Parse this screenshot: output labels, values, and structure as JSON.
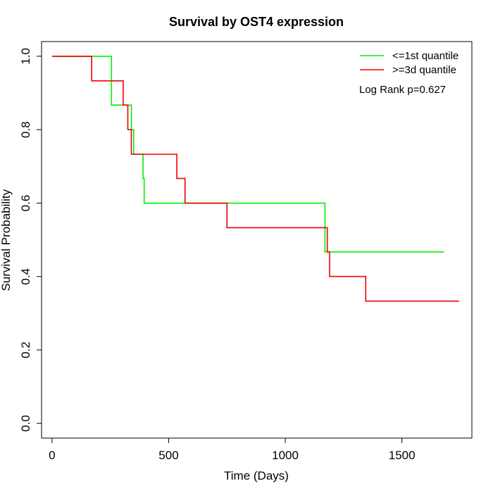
{
  "chart_data": {
    "type": "line",
    "title": "Survival by OST4 expression",
    "xlabel": "Time (Days)",
    "ylabel": "Survival Probability",
    "xlim": [
      -45,
      1800
    ],
    "ylim": [
      -0.04,
      1.04
    ],
    "xticks": [
      0,
      500,
      1000,
      1500
    ],
    "yticks": [
      0.0,
      0.2,
      0.4,
      0.6,
      0.8,
      1.0
    ],
    "ytick_labels": [
      "0.0",
      "0.2",
      "0.4",
      "0.6",
      "0.8",
      "1.0"
    ],
    "legend_position": "top-right",
    "annotation": "Log Rank p=0.627",
    "series": [
      {
        "name": "<=1st quantile",
        "color": "#00ee00",
        "x": [
          0,
          255,
          255,
          340,
          340,
          350,
          350,
          390,
          390,
          395,
          395,
          1170,
          1170,
          1680
        ],
        "y": [
          1.0,
          1.0,
          0.867,
          0.867,
          0.8,
          0.8,
          0.733,
          0.733,
          0.667,
          0.667,
          0.6,
          0.6,
          0.467,
          0.467
        ]
      },
      {
        "name": ">=3d quantile",
        "color": "#ee0000",
        "x": [
          0,
          170,
          170,
          305,
          305,
          325,
          325,
          340,
          340,
          535,
          535,
          570,
          570,
          750,
          750,
          1180,
          1180,
          1190,
          1190,
          1345,
          1345,
          1745
        ],
        "y": [
          1.0,
          1.0,
          0.933,
          0.933,
          0.867,
          0.867,
          0.8,
          0.8,
          0.733,
          0.733,
          0.667,
          0.667,
          0.6,
          0.6,
          0.533,
          0.533,
          0.467,
          0.467,
          0.4,
          0.4,
          0.333,
          0.333
        ]
      }
    ]
  }
}
